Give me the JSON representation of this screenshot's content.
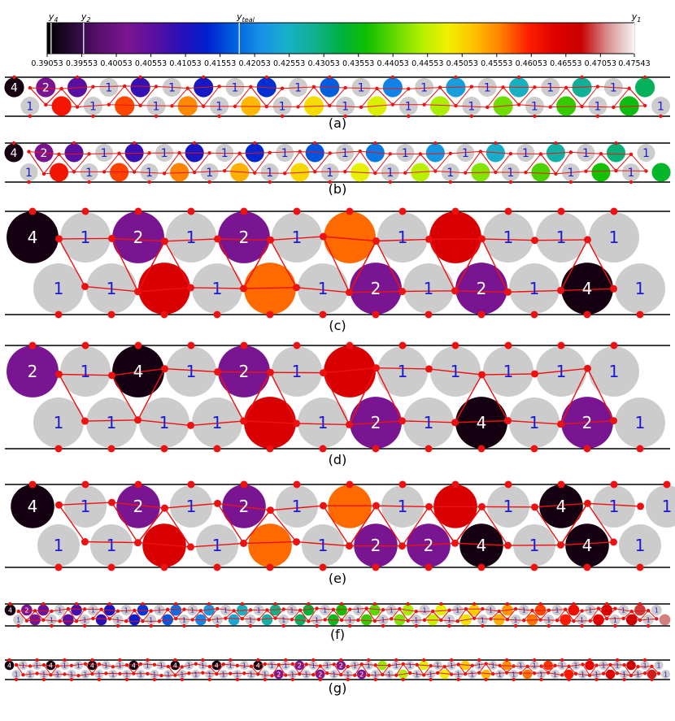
{
  "colorbar": {
    "markers": [
      {
        "label": "y4",
        "sub": "4",
        "value": 0.3911
      },
      {
        "label": "y2",
        "sub": "2",
        "value": 0.3958
      },
      {
        "label": "yteal",
        "sub": "teal",
        "value": 0.4183
      },
      {
        "label": "y1",
        "sub": "1",
        "value": 0.4754
      }
    ],
    "ticks": [
      "0.39053",
      "0.39553",
      "0.40053",
      "0.40553",
      "0.41053",
      "0.41553",
      "0.42053",
      "0.42553",
      "0.43053",
      "0.43553",
      "0.44053",
      "0.44553",
      "0.45053",
      "0.45553",
      "0.46053",
      "0.46553",
      "0.47053",
      "0.47543"
    ],
    "colormap": [
      "#000000",
      "#2a0a3a",
      "#5a1070",
      "#7a1590",
      "#5a10a0",
      "#2a10b8",
      "#0020d0",
      "#0060e0",
      "#1890e8",
      "#18b0c8",
      "#10b090",
      "#00b040",
      "#10c000",
      "#60d800",
      "#b0f000",
      "#f0f000",
      "#ffc000",
      "#ff8000",
      "#ff2000",
      "#e00000",
      "#c80000",
      "#d89090",
      "#f4f4f4"
    ]
  },
  "panels": [
    {
      "id": "a",
      "caption": "(a)",
      "seed": 11,
      "teal": true
    },
    {
      "id": "b",
      "caption": "(b)",
      "seed": 23,
      "teal": true
    },
    {
      "id": "c",
      "caption": "(c)",
      "seed": 37
    },
    {
      "id": "d",
      "caption": "(d)",
      "seed": 41
    },
    {
      "id": "e",
      "caption": "(e)",
      "seed": 53
    },
    {
      "id": "f",
      "caption": "(f)",
      "seed": 67
    },
    {
      "id": "g",
      "caption": "(g)",
      "seed": 79
    }
  ],
  "labels": {
    "one": "1",
    "two": "2",
    "four": "4"
  },
  "colors": {
    "grey": "#cccccc",
    "black_4": "#140010",
    "purple_2": "#7a1592",
    "red": "#d80000",
    "orange": "#ff6a00",
    "edge": "#ee1111",
    "node": "#ee1111",
    "label_blue": "#1a1ad0",
    "wall": "#000000"
  }
}
